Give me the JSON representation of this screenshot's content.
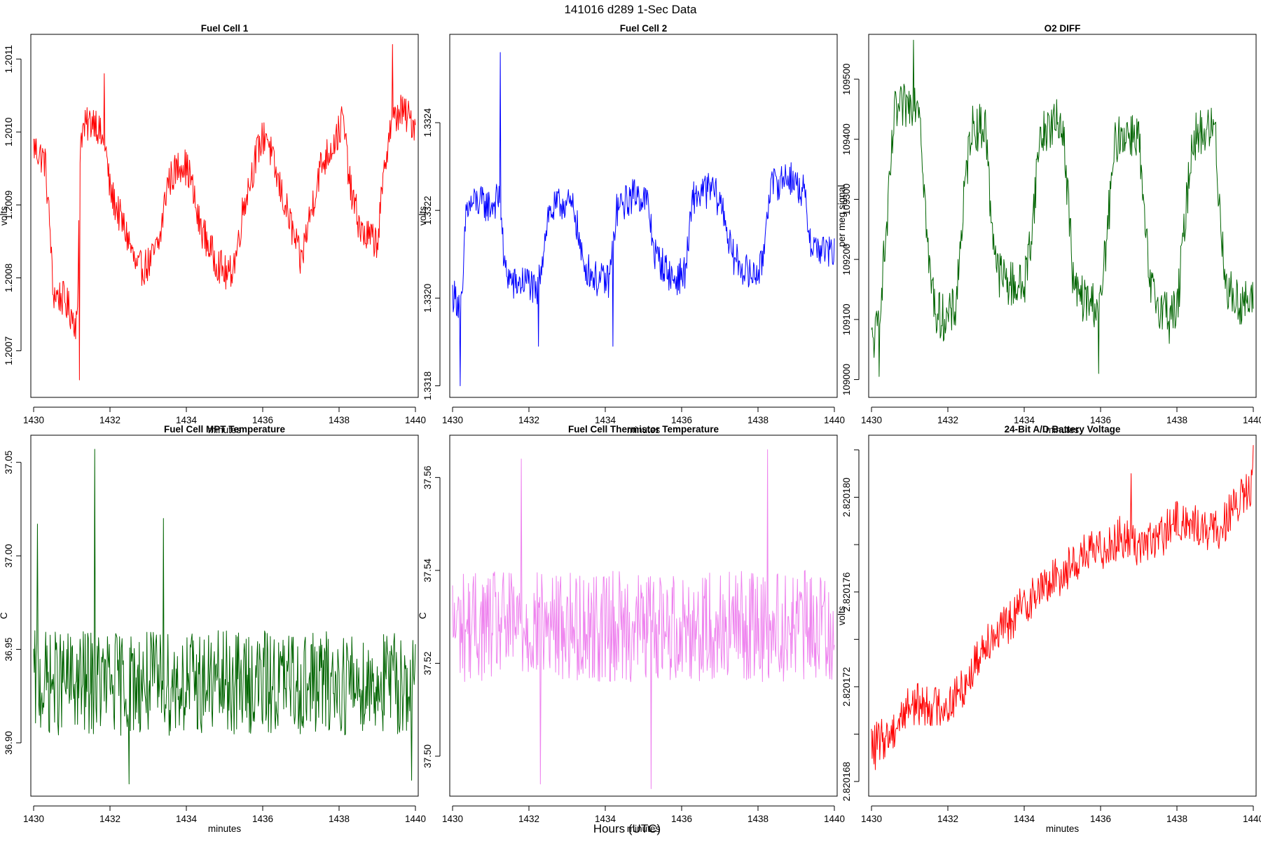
{
  "figure": {
    "title": "141016   d289   1-Sec Data",
    "outer_xlabel": "Hours (UTC)"
  },
  "chart_data": [
    {
      "type": "line",
      "title": "Fuel Cell 1",
      "xlabel": "minutes",
      "ylabel": "volts",
      "color": "#ff0000",
      "xlim": [
        1430,
        1440
      ],
      "ylim": [
        1.20064,
        1.20113
      ],
      "xticks": [
        1430,
        1432,
        1434,
        1436,
        1438,
        1440
      ],
      "xtick_labels": [
        "1430",
        "1432",
        "1434",
        "1436",
        "1438",
        "1440"
      ],
      "yticks": [
        1.2007,
        1.2008,
        1.2009,
        1.201,
        1.2011
      ],
      "ytick_labels": [
        "1.2007",
        "1.2008",
        "1.2009",
        "1.2010",
        "1.2011"
      ],
      "series": [
        {
          "name": "Fuel Cell 1",
          "x": [
            1430.0,
            1430.3,
            1430.45,
            1430.5,
            1430.8,
            1431.1,
            1431.15,
            1431.2,
            1431.25,
            1431.6,
            1431.9,
            1432.0,
            1432.5,
            1432.7,
            1433.05,
            1433.3,
            1433.5,
            1433.9,
            1434.1,
            1434.3,
            1434.7,
            1435.1,
            1435.3,
            1435.5,
            1435.9,
            1436.1,
            1436.3,
            1436.7,
            1437.0,
            1437.1,
            1437.5,
            1438.0,
            1438.1,
            1438.3,
            1438.6,
            1439.0,
            1439.1,
            1439.3,
            1439.6,
            1440.0
          ],
          "y": [
            1.20098,
            1.20096,
            1.20085,
            1.20078,
            1.20077,
            1.20074,
            1.20074,
            1.20095,
            1.201,
            1.20102,
            1.20097,
            1.20092,
            1.20085,
            1.20081,
            1.20082,
            1.20085,
            1.20093,
            1.20096,
            1.20094,
            1.20088,
            1.20083,
            1.2008,
            1.20083,
            1.2009,
            1.20098,
            1.201,
            1.20095,
            1.20088,
            1.20082,
            1.20085,
            1.20095,
            1.201,
            1.20102,
            1.20092,
            1.20086,
            1.20085,
            1.2009,
            1.201,
            1.20103,
            1.20101
          ],
          "noise": 2.5e-05,
          "spikes": [
            {
              "x": 1431.2,
              "y": 1.20066
            },
            {
              "x": 1431.85,
              "y": 1.20108
            },
            {
              "x": 1439.4,
              "y": 1.20112
            }
          ]
        }
      ]
    },
    {
      "type": "line",
      "title": "Fuel Cell 2",
      "xlabel": "minutes",
      "ylabel": "volts",
      "color": "#0000ff",
      "xlim": [
        1430,
        1440
      ],
      "ylim": [
        1.33178,
        1.332595
      ],
      "xticks": [
        1430,
        1432,
        1434,
        1436,
        1438,
        1440
      ],
      "xtick_labels": [
        "1430",
        "1432",
        "1434",
        "1436",
        "1438",
        "1440"
      ],
      "yticks": [
        1.3318,
        1.332,
        1.3322,
        1.3324
      ],
      "ytick_labels": [
        "1.3318",
        "1.3320",
        "1.3322",
        "1.3324"
      ],
      "series": [
        {
          "name": "Fuel Cell 2",
          "x": [
            1430.0,
            1430.25,
            1430.35,
            1430.6,
            1431.0,
            1431.25,
            1431.35,
            1431.6,
            1432.0,
            1432.2,
            1432.5,
            1432.9,
            1433.2,
            1433.4,
            1433.8,
            1434.1,
            1434.3,
            1434.8,
            1435.1,
            1435.3,
            1435.8,
            1436.1,
            1436.3,
            1436.8,
            1437.1,
            1437.3,
            1437.8,
            1438.1,
            1438.3,
            1438.8,
            1439.2,
            1439.4,
            1440.0
          ],
          "y": [
            1.33201,
            1.33198,
            1.3322,
            1.33222,
            1.33221,
            1.33223,
            1.33207,
            1.33203,
            1.33204,
            1.332,
            1.33219,
            1.33222,
            1.3322,
            1.33208,
            1.33204,
            1.33204,
            1.3322,
            1.33224,
            1.33222,
            1.3321,
            1.33204,
            1.33206,
            1.33223,
            1.33225,
            1.3322,
            1.3321,
            1.33205,
            1.33207,
            1.33225,
            1.33228,
            1.33224,
            1.33212,
            1.3321
          ],
          "noise": 4e-05,
          "spikes": [
            {
              "x": 1430.2,
              "y": 1.3318
            },
            {
              "x": 1431.25,
              "y": 1.33256
            },
            {
              "x": 1432.25,
              "y": 1.33189
            },
            {
              "x": 1434.2,
              "y": 1.33189
            }
          ]
        }
      ]
    },
    {
      "type": "line",
      "title": "O2 DIFF",
      "xlabel": "minutes",
      "ylabel": "per meg signal",
      "color": "#006400",
      "xlim": [
        1430,
        1440
      ],
      "ylim": [
        108975,
        109570
      ],
      "xticks": [
        1430,
        1432,
        1434,
        1436,
        1438,
        1440
      ],
      "xtick_labels": [
        "1430",
        "1432",
        "1434",
        "1436",
        "1438",
        "1440"
      ],
      "yticks": [
        109000,
        109100,
        109200,
        109300,
        109400,
        109500
      ],
      "ytick_labels": [
        "109000",
        "109100",
        "109200",
        "109300",
        "109400",
        "109500"
      ],
      "series": [
        {
          "name": "O2 DIFF",
          "x": [
            1430.0,
            1430.15,
            1430.4,
            1430.6,
            1431.0,
            1431.25,
            1431.4,
            1431.5,
            1431.7,
            1432.0,
            1432.2,
            1432.4,
            1432.6,
            1433.0,
            1433.1,
            1433.3,
            1433.6,
            1434.0,
            1434.2,
            1434.4,
            1434.6,
            1435.0,
            1435.15,
            1435.3,
            1435.6,
            1436.0,
            1436.15,
            1436.4,
            1436.6,
            1437.0,
            1437.1,
            1437.3,
            1437.6,
            1438.0,
            1438.15,
            1438.4,
            1438.6,
            1439.0,
            1439.1,
            1439.3,
            1439.6,
            1440.0
          ],
          "y": [
            109060,
            109080,
            109250,
            109440,
            109460,
            109470,
            109300,
            109190,
            109110,
            109100,
            109120,
            109280,
            109420,
            109420,
            109300,
            109180,
            109160,
            109155,
            109250,
            109400,
            109420,
            109430,
            109300,
            109150,
            109130,
            109125,
            109230,
            109400,
            109410,
            109410,
            109300,
            109150,
            109120,
            109110,
            109220,
            109400,
            109410,
            109420,
            109300,
            109150,
            109130,
            109125
          ],
          "noise": 40,
          "spikes": [
            {
              "x": 1430.2,
              "y": 109005
            },
            {
              "x": 1431.1,
              "y": 109565
            },
            {
              "x": 1435.95,
              "y": 109010
            },
            {
              "x": 1437.8,
              "y": 109060
            }
          ]
        }
      ]
    },
    {
      "type": "line",
      "title": "Fuel Cell MPT Temperature",
      "xlabel": "minutes",
      "ylabel": "C",
      "color": "#006400",
      "xlim": [
        1430,
        1440
      ],
      "ylim": [
        36.873,
        37.063
      ],
      "xticks": [
        1430,
        1432,
        1434,
        1436,
        1438,
        1440
      ],
      "xtick_labels": [
        "1430",
        "1432",
        "1434",
        "1436",
        "1438",
        "1440"
      ],
      "yticks": [
        36.9,
        36.95,
        37.0,
        37.05
      ],
      "ytick_labels": [
        "36.90",
        "36.95",
        "37.00",
        "37.05"
      ],
      "series": [
        {
          "name": "Fuel Cell MPT Temperature",
          "x": [
            1430.0,
            1440.0
          ],
          "y": [
            36.932,
            36.932
          ],
          "noise": 0.028,
          "spikes": [
            {
              "x": 1430.1,
              "y": 37.017
            },
            {
              "x": 1431.6,
              "y": 37.057
            },
            {
              "x": 1433.4,
              "y": 37.02
            },
            {
              "x": 1432.5,
              "y": 36.878
            },
            {
              "x": 1439.9,
              "y": 36.88
            }
          ]
        }
      ]
    },
    {
      "type": "line",
      "title": "Fuel Cell Thermistor Temperature",
      "xlabel": "minutes",
      "ylabel": "C",
      "color": "#ee82ee",
      "xlim": [
        1430,
        1440
      ],
      "ylim": [
        37.492,
        37.5685
      ],
      "xticks": [
        1430,
        1432,
        1434,
        1436,
        1438,
        1440
      ],
      "xtick_labels": [
        "1430",
        "1432",
        "1434",
        "1436",
        "1438",
        "1440"
      ],
      "yticks": [
        37.5,
        37.52,
        37.54,
        37.56
      ],
      "ytick_labels": [
        "37.50",
        "37.52",
        "37.54",
        "37.56"
      ],
      "series": [
        {
          "name": "Fuel Cell Thermistor Temperature",
          "x": [
            1430.0,
            1440.0
          ],
          "y": [
            37.528,
            37.528
          ],
          "noise": 0.012,
          "spikes": [
            {
              "x": 1431.8,
              "y": 37.564
            },
            {
              "x": 1432.3,
              "y": 37.494
            },
            {
              "x": 1435.2,
              "y": 37.493
            },
            {
              "x": 1438.25,
              "y": 37.566
            }
          ]
        }
      ]
    },
    {
      "type": "line",
      "title": "24-Bit A/D Battery Voltage",
      "xlabel": "minutes",
      "ylabel": "volts",
      "color": "#ff0000",
      "xlim": [
        1430,
        1440
      ],
      "ylim": [
        2.8201675,
        2.8201825
      ],
      "xticks": [
        1430,
        1432,
        1434,
        1436,
        1438,
        1440
      ],
      "xtick_labels": [
        "1430",
        "1432",
        "1434",
        "1436",
        "1438",
        "1440"
      ],
      "yticks": [
        2.820168,
        2.82017,
        2.820172,
        2.820174,
        2.820176,
        2.820178,
        2.82018,
        2.820182
      ],
      "ytick_labels": [
        "2.820168",
        "",
        "2.820172",
        "",
        "2.820176",
        "",
        "2.820180",
        ""
      ],
      "series": [
        {
          "name": "24-Bit A/D Battery Voltage",
          "x": [
            1430.0,
            1430.5,
            1431.0,
            1431.5,
            1432.0,
            1432.5,
            1433.0,
            1433.5,
            1434.0,
            1434.5,
            1435.0,
            1435.5,
            1436.0,
            1436.5,
            1437.0,
            1437.5,
            1438.0,
            1438.5,
            1439.0,
            1439.5,
            1440.0
          ],
          "y": [
            2.8201695,
            2.82017,
            2.8201713,
            2.8201712,
            2.8201712,
            2.8201722,
            2.820174,
            2.8201745,
            2.8201755,
            2.8201762,
            2.8201768,
            2.8201775,
            2.8201778,
            2.8201783,
            2.820178,
            2.8201782,
            2.820179,
            2.8201788,
            2.8201785,
            2.8201795,
            2.8201805
          ],
          "noise": 9e-07,
          "spikes": [
            {
              "x": 1430.1,
              "y": 2.8201685
            },
            {
              "x": 1436.8,
              "y": 2.820181
            },
            {
              "x": 1440.0,
              "y": 2.8201822
            }
          ]
        }
      ]
    }
  ]
}
